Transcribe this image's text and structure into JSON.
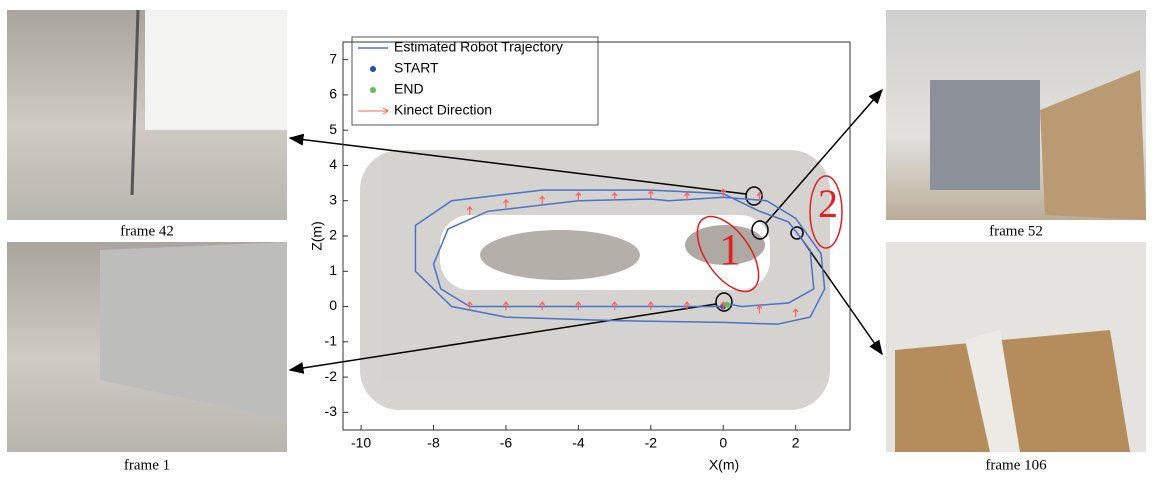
{
  "chart_data": {
    "type": "line",
    "x_label": "X(m)",
    "y_label": "Z(m)",
    "xlim": [
      -10.5,
      3.5
    ],
    "ylim": [
      -3.5,
      7.5
    ],
    "xticks": [
      -10,
      -8,
      -6,
      -4,
      -2,
      0,
      2
    ],
    "yticks": [
      -3,
      -2,
      -1,
      0,
      1,
      2,
      3,
      4,
      5,
      6,
      7
    ],
    "series": [
      {
        "name": "Estimated Robot Trajectory",
        "type": "line",
        "color": "#4a72c8",
        "x": [
          0,
          -4,
          -7,
          -7.8,
          -8,
          -7.6,
          -6.5,
          -4,
          -2,
          -1.5,
          0,
          1.2,
          2,
          2.7,
          2.8,
          2.4,
          1.5,
          0,
          -3,
          -6,
          -7.5,
          -8.5,
          -8.5,
          -7.5,
          -5,
          -2,
          0,
          1,
          1.8,
          2.4,
          2.5,
          1.8,
          0.5,
          0
        ],
        "y": [
          0,
          0,
          0,
          0.5,
          1.2,
          2.2,
          2.7,
          3.0,
          3.05,
          3.0,
          3.1,
          3.0,
          2.5,
          1.5,
          0.5,
          -0.3,
          -0.5,
          -0.45,
          -0.4,
          -0.3,
          0,
          1,
          2.3,
          3.0,
          3.3,
          3.3,
          3.2,
          2.7,
          2.4,
          1.6,
          0.5,
          0.1,
          0,
          0.1
        ]
      },
      {
        "name": "START",
        "type": "scatter",
        "color": "#1f4fa8",
        "x": [
          0
        ],
        "y": [
          0
        ]
      },
      {
        "name": "END",
        "type": "scatter",
        "color": "#5cc44a",
        "x": [
          0.1
        ],
        "y": [
          0.05
        ]
      },
      {
        "name": "Kinect Direction",
        "type": "arrow",
        "color": "#ff6060",
        "x": [
          -7,
          -6,
          -5,
          -4,
          -3,
          -2,
          -1,
          0,
          1,
          -7,
          -6,
          -5,
          -4,
          -3,
          -2,
          -1,
          0,
          1,
          2
        ],
        "y": [
          2.6,
          2.8,
          2.9,
          3.0,
          3.0,
          3.05,
          3.0,
          3.1,
          3.0,
          -0.1,
          -0.1,
          -0.1,
          -0.1,
          -0.1,
          -0.1,
          -0.1,
          -0.1,
          -0.2,
          -0.3
        ]
      }
    ],
    "annotations": [
      "1",
      "2"
    ]
  },
  "frames": [
    {
      "caption": "frame  42"
    },
    {
      "caption": "frame  1"
    },
    {
      "caption": "frame  52"
    },
    {
      "caption": "frame  106"
    }
  ]
}
